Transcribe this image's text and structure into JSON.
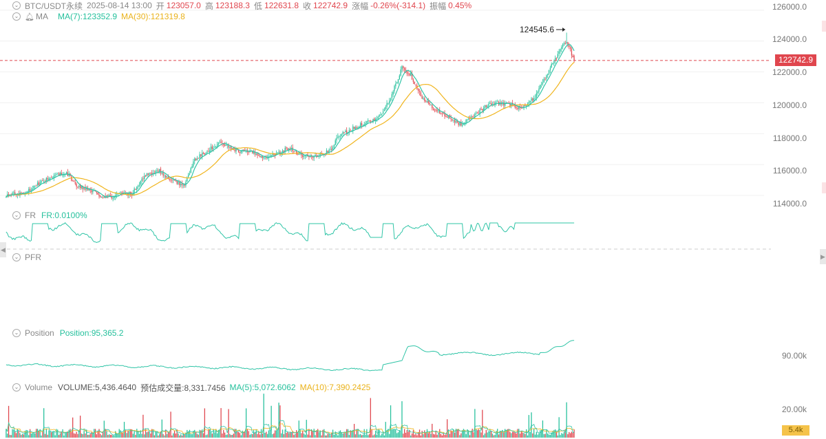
{
  "main_header": {
    "symbol": "BTC/USDT永续",
    "datetime": "2025-08-14 13:00",
    "open_label": "开",
    "open_value": "123057.0",
    "high_label": "高",
    "high_value": "123188.3",
    "low_label": "低",
    "low_value": "122631.8",
    "close_label": "收",
    "close_value": "122742.9",
    "change_label": "涨幅",
    "change_value": "-0.26%(-314.1)",
    "amplitude_label": "振幅",
    "amplitude_value": "0.45%"
  },
  "ma_header": {
    "label": "MA",
    "ma7": "MA(7):123352.9",
    "ma30": "MA(30):121319.8"
  },
  "price_axis": [
    "126000.0",
    "124000.0",
    "122000.0",
    "120000.0",
    "118000.0",
    "116000.0",
    "114000.0"
  ],
  "last_price": "122742.9",
  "max_annotation": "124545.6",
  "fr_panel": {
    "label": "FR",
    "value": "FR:0.0100%"
  },
  "pfr_panel": {
    "label": "PFR"
  },
  "position_panel": {
    "label": "Position",
    "value": "Position:95,365.2",
    "axis_label": "90.00k"
  },
  "volume_panel": {
    "label": "Volume",
    "volume": "VOLUME:5,436.4640",
    "estimated": "预估成交量:8,331.7456",
    "ma5": "MA(5):5,072.6062",
    "ma10": "MA(10):7,390.2425",
    "axis_label": "20.00k",
    "current_tag": "5.4k"
  },
  "colors": {
    "up": "#25c09c",
    "down": "#e0464e",
    "ma7": "#2ec4a6",
    "ma30": "#f0b41c",
    "grid": "#f0f0f0"
  },
  "icons": [
    "chevron-down-icon",
    "bell-icon",
    "scroll-left-icon",
    "scroll-right-icon"
  ],
  "chart_data": {
    "type": "candlestick",
    "interval": "1h",
    "ylim": [
      113200,
      126300
    ],
    "last_close": 122742.9,
    "max_high": 124545.6,
    "close_anchors": [
      [
        0,
        114000
      ],
      [
        15,
        114200
      ],
      [
        28,
        114900
      ],
      [
        40,
        115300
      ],
      [
        48,
        115500
      ],
      [
        56,
        114600
      ],
      [
        65,
        114400
      ],
      [
        75,
        114000
      ],
      [
        85,
        113900
      ],
      [
        93,
        114200
      ],
      [
        100,
        114100
      ],
      [
        110,
        115300
      ],
      [
        122,
        115600
      ],
      [
        132,
        114900
      ],
      [
        142,
        114700
      ],
      [
        150,
        116300
      ],
      [
        160,
        116900
      ],
      [
        170,
        117400
      ],
      [
        182,
        116900
      ],
      [
        195,
        116800
      ],
      [
        205,
        116500
      ],
      [
        215,
        116700
      ],
      [
        225,
        117100
      ],
      [
        235,
        116600
      ],
      [
        245,
        116500
      ],
      [
        258,
        116900
      ],
      [
        265,
        117900
      ],
      [
        275,
        118300
      ],
      [
        285,
        118700
      ],
      [
        296,
        119000
      ],
      [
        305,
        120100
      ],
      [
        315,
        122300
      ],
      [
        322,
        121800
      ],
      [
        332,
        120200
      ],
      [
        342,
        119500
      ],
      [
        352,
        119000
      ],
      [
        362,
        118600
      ],
      [
        372,
        119200
      ],
      [
        382,
        119800
      ],
      [
        392,
        120000
      ],
      [
        400,
        119900
      ],
      [
        410,
        119600
      ],
      [
        420,
        120300
      ],
      [
        430,
        121800
      ],
      [
        440,
        123300
      ],
      [
        446,
        124000
      ],
      [
        452,
        122742.9
      ]
    ],
    "ma7_last": 123352.9,
    "ma30_last": 121319.8,
    "fr_last": 0.01,
    "position_last": 95365.2,
    "volume_last": 5436.464,
    "volume_ma5_last": 5072.6062,
    "volume_ma10_last": 7390.2425
  }
}
